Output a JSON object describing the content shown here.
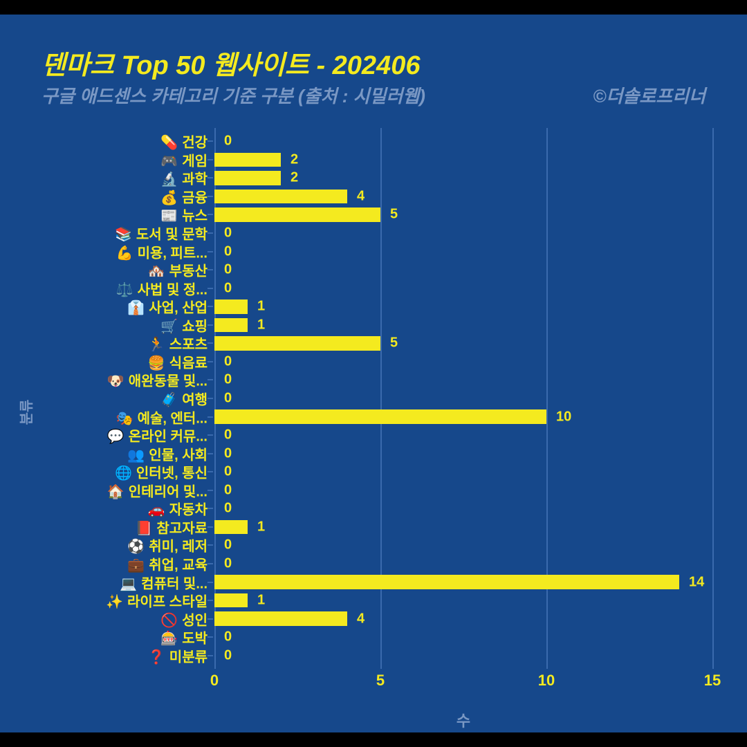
{
  "colors": {
    "page_bg": "#000000",
    "panel_bg": "#16488b",
    "accent": "#f4ea1f",
    "muted": "#7a98c4",
    "grid": "#3a6aad"
  },
  "header": {
    "title": "덴마크 Top 50 웹사이트 - 202406",
    "subtitle": "구글 애드센스 카테고리 기준 구분 (출처 : 시밀러웹)",
    "credit": "©더솔로프리너"
  },
  "chart": {
    "type": "bar-horizontal",
    "x_axis_label": "수",
    "y_axis_label": "분류",
    "xlim": [
      0,
      15
    ],
    "xticks": [
      0,
      5,
      10,
      15
    ],
    "bar_color": "#f4ea1f",
    "value_label_color": "#f4ea1f",
    "category_label_color": "#f4ea1f",
    "grid_color": "#3a6aad",
    "label_fontsize": 20,
    "title_fontsize": 38,
    "categories": [
      {
        "emoji": "💊",
        "label": "건강",
        "value": 0
      },
      {
        "emoji": "🎮",
        "label": "게임",
        "value": 2
      },
      {
        "emoji": "🔬",
        "label": "과학",
        "value": 2
      },
      {
        "emoji": "💰",
        "label": "금융",
        "value": 4
      },
      {
        "emoji": "📰",
        "label": "뉴스",
        "value": 5
      },
      {
        "emoji": "📚",
        "label": "도서 및 문학",
        "value": 0
      },
      {
        "emoji": "💪",
        "label": "미용, 피트...",
        "value": 0
      },
      {
        "emoji": "🏘️",
        "label": "부동산",
        "value": 0
      },
      {
        "emoji": "⚖️",
        "label": "사법 및 정...",
        "value": 0
      },
      {
        "emoji": "👔",
        "label": "사업, 산업",
        "value": 1
      },
      {
        "emoji": "🛒",
        "label": "쇼핑",
        "value": 1
      },
      {
        "emoji": "🏃",
        "label": "스포츠",
        "value": 5
      },
      {
        "emoji": "🍔",
        "label": "식음료",
        "value": 0
      },
      {
        "emoji": "🐶",
        "label": "애완동물 및...",
        "value": 0
      },
      {
        "emoji": "🧳",
        "label": "여행",
        "value": 0
      },
      {
        "emoji": "🎭",
        "label": "예술, 엔터...",
        "value": 10
      },
      {
        "emoji": "💬",
        "label": "온라인 커뮤...",
        "value": 0
      },
      {
        "emoji": "👥",
        "label": "인물, 사회",
        "value": 0
      },
      {
        "emoji": "🌐",
        "label": "인터넷, 통신",
        "value": 0
      },
      {
        "emoji": "🏠",
        "label": "인테리어 및...",
        "value": 0
      },
      {
        "emoji": "🚗",
        "label": "자동차",
        "value": 0
      },
      {
        "emoji": "📕",
        "label": "참고자료",
        "value": 1
      },
      {
        "emoji": "⚽",
        "label": "취미, 레저",
        "value": 0
      },
      {
        "emoji": "💼",
        "label": "취업, 교육",
        "value": 0
      },
      {
        "emoji": "💻",
        "label": "컴퓨터 및...",
        "value": 14
      },
      {
        "emoji": "✨",
        "label": "라이프 스타일",
        "value": 1
      },
      {
        "emoji": "🚫",
        "label": "성인",
        "value": 4
      },
      {
        "emoji": "🎰",
        "label": "도박",
        "value": 0
      },
      {
        "emoji": "❓",
        "label": "미분류",
        "value": 0
      }
    ]
  }
}
